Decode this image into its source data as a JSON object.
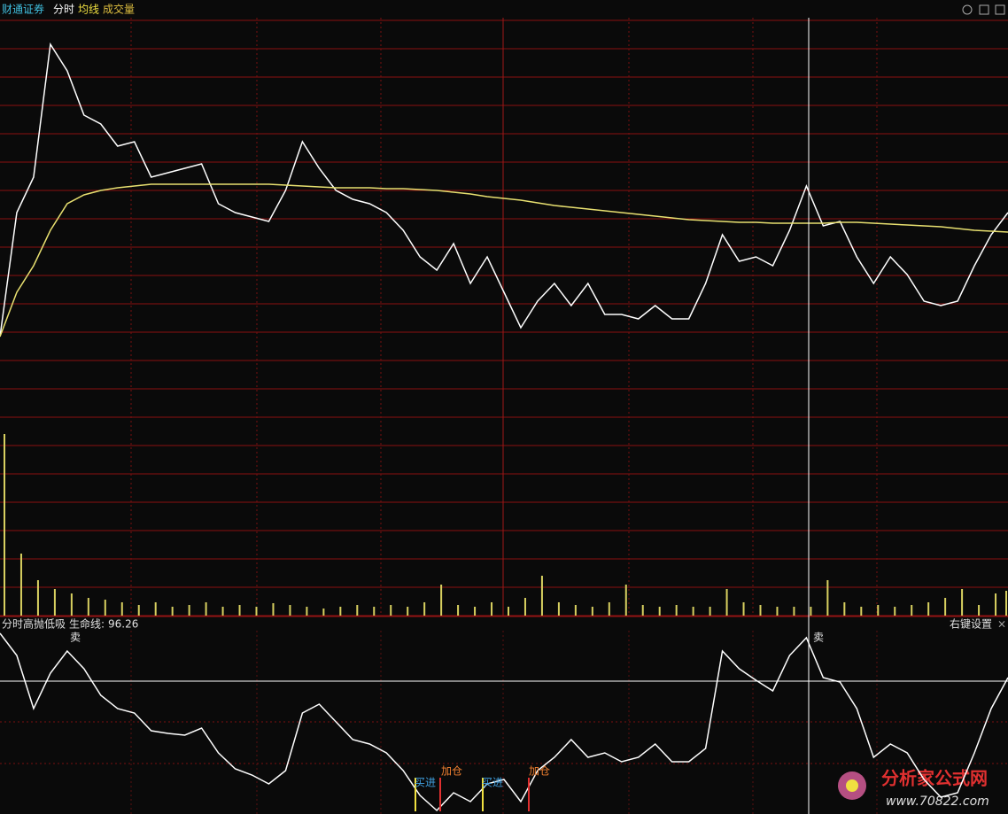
{
  "header": {
    "broker": "财通证券",
    "tabs": [
      "分时",
      "均线",
      "成交量"
    ]
  },
  "chart_data": [
    {
      "type": "line",
      "ylim": [
        0,
        450
      ],
      "series": [
        {
          "name": "分时",
          "color": "#ffffff",
          "values": [
            90,
            230,
            270,
            420,
            390,
            340,
            330,
            305,
            310,
            270,
            275,
            280,
            285,
            240,
            230,
            225,
            220,
            255,
            310,
            280,
            255,
            245,
            240,
            230,
            210,
            180,
            165,
            195,
            150,
            180,
            140,
            100,
            130,
            150,
            125,
            150,
            115,
            115,
            110,
            125,
            110,
            110,
            150,
            205,
            175,
            180,
            170,
            210,
            260,
            215,
            220,
            180,
            150,
            180,
            160,
            130,
            125,
            130,
            170,
            205,
            230
          ]
        },
        {
          "name": "均线",
          "color": "#e8e070",
          "values": [
            90,
            140,
            170,
            210,
            240,
            250,
            255,
            258,
            260,
            262,
            262,
            262,
            262,
            262,
            262,
            262,
            262,
            261,
            260,
            259,
            258,
            258,
            258,
            257,
            257,
            256,
            255,
            253,
            251,
            248,
            246,
            244,
            241,
            238,
            236,
            234,
            232,
            230,
            228,
            226,
            224,
            222,
            221,
            220,
            219,
            219,
            218,
            218,
            218,
            218,
            219,
            219,
            218,
            217,
            216,
            215,
            214,
            212,
            210,
            209,
            208
          ]
        }
      ]
    },
    {
      "type": "bar",
      "ylim": [
        0,
        220
      ],
      "color": "#d8d060",
      "values": [
        205,
        70,
        40,
        30,
        25,
        20,
        18,
        15,
        12,
        15,
        10,
        12,
        15,
        10,
        12,
        10,
        14,
        12,
        10,
        8,
        10,
        12,
        10,
        12,
        10,
        15,
        35,
        12,
        10,
        15,
        10,
        20,
        45,
        15,
        12,
        10,
        15,
        35,
        12,
        10,
        12,
        10,
        10,
        30,
        15,
        12,
        10,
        10,
        10,
        40,
        15,
        10,
        12,
        10,
        12,
        15,
        20,
        30,
        12,
        25,
        28
      ]
    },
    {
      "type": "line",
      "title": "分时高抛低吸",
      "ylim": [
        0,
        207
      ],
      "life_line": {
        "label": "生命线:",
        "value": 96.26
      },
      "settings": "右键设置",
      "close": "×",
      "series": [
        {
          "color": "#ffffff",
          "values": [
            204,
            179,
            119,
            159,
            184,
            164,
            134,
            119,
            114,
            94,
            91,
            89,
            97,
            69,
            51,
            44,
            34,
            49,
            114,
            124,
            104,
            84,
            79,
            69,
            49,
            21,
            4,
            24,
            14,
            34,
            39,
            14,
            49,
            64,
            84,
            64,
            69,
            59,
            64,
            79,
            59,
            59,
            74,
            184,
            164,
            151,
            139,
            179,
            199,
            154,
            149,
            119,
            64,
            79,
            69,
            39,
            19,
            24,
            69,
            119,
            154
          ]
        }
      ],
      "annotations": [
        "卖",
        "卖",
        "买进",
        "加仓",
        "买进",
        "加仓"
      ]
    }
  ],
  "watermark": {
    "name": "分析家公式网",
    "url": "www.70822.com"
  }
}
